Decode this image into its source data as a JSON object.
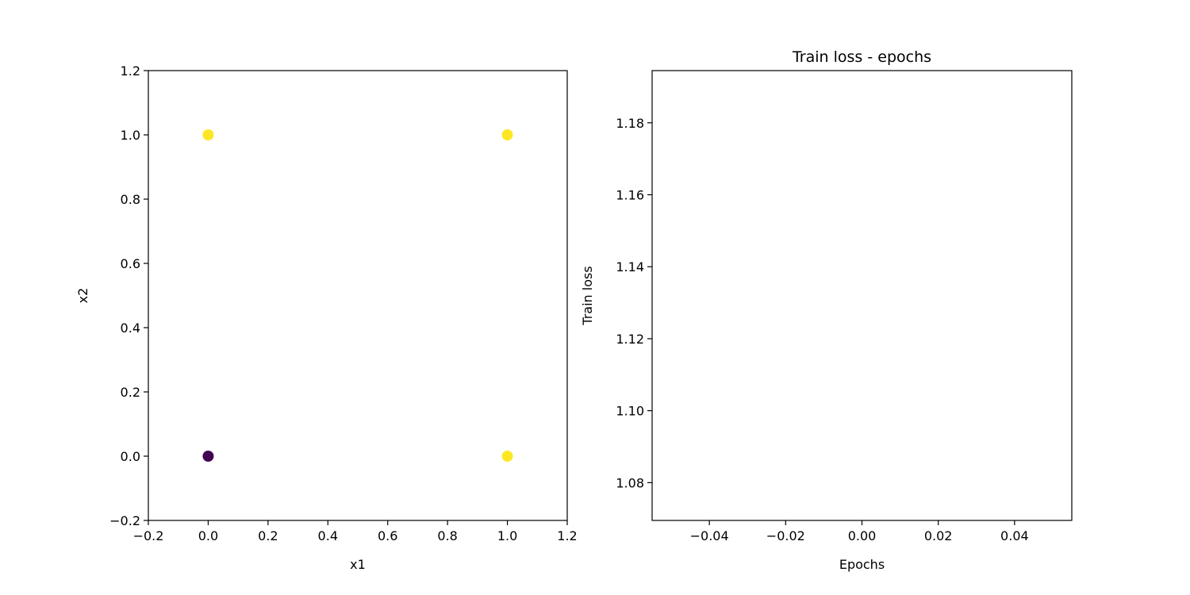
{
  "chart_data": [
    {
      "type": "scatter",
      "title": "",
      "xlabel": "x1",
      "ylabel": "x2",
      "xlim": [
        -0.2,
        1.2
      ],
      "ylim": [
        -0.2,
        1.2
      ],
      "xticks": [
        -0.2,
        0.0,
        0.2,
        0.4,
        0.6,
        0.8,
        1.0,
        1.2
      ],
      "yticks": [
        -0.2,
        0.0,
        0.2,
        0.4,
        0.6,
        0.8,
        1.0,
        1.2
      ],
      "xtick_labels": [
        "−0.2",
        "0.0",
        "0.2",
        "0.4",
        "0.6",
        "0.8",
        "1.0",
        "1.2"
      ],
      "ytick_labels": [
        "−0.2",
        "0.0",
        "0.2",
        "0.4",
        "0.6",
        "0.8",
        "1.0",
        "1.2"
      ],
      "grid": false,
      "points": [
        {
          "x": 0,
          "y": 0,
          "label": 0,
          "color": "#440154"
        },
        {
          "x": 0,
          "y": 1,
          "label": 1,
          "color": "#fde725"
        },
        {
          "x": 1,
          "y": 0,
          "label": 1,
          "color": "#fde725"
        },
        {
          "x": 1,
          "y": 1,
          "label": 1,
          "color": "#fde725"
        }
      ]
    },
    {
      "type": "line",
      "title": "Train loss - epochs",
      "xlabel": "Epochs",
      "ylabel": "Train loss",
      "xlim": [
        -0.055,
        0.055
      ],
      "ylim": [
        1.0695,
        1.1945
      ],
      "xticks": [
        -0.04,
        -0.02,
        0.0,
        0.02,
        0.04
      ],
      "yticks": [
        1.08,
        1.1,
        1.12,
        1.14,
        1.16,
        1.18
      ],
      "xtick_labels": [
        "−0.04",
        "−0.02",
        "0.00",
        "0.02",
        "0.04"
      ],
      "ytick_labels": [
        "1.08",
        "1.10",
        "1.12",
        "1.14",
        "1.16",
        "1.18"
      ],
      "grid": false,
      "series": [
        {
          "x": [],
          "y": []
        }
      ]
    }
  ]
}
